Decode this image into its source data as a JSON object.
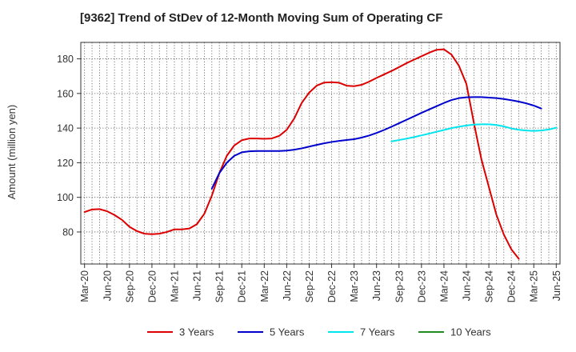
{
  "title": "[9362]  Trend of StDev of 12-Month Moving Sum of Operating CF",
  "chart_data": {
    "type": "line",
    "title": "[9362]  Trend of StDev of 12-Month Moving Sum of Operating CF",
    "ylabel": "Amount (million yen)",
    "xlabel": "",
    "ylim": [
      61.5,
      189.5
    ],
    "yticks": [
      80,
      100,
      120,
      140,
      160,
      180
    ],
    "x_start": "Mar-20",
    "x_count": 64,
    "xticks": [
      "Mar-20",
      "Jun-20",
      "Sep-20",
      "Dec-20",
      "Mar-21",
      "Jun-21",
      "Sep-21",
      "Dec-21",
      "Mar-22",
      "Jun-22",
      "Sep-22",
      "Dec-22",
      "Mar-23",
      "Jun-23",
      "Sep-23",
      "Dec-23",
      "Mar-24",
      "Jun-24",
      "Sep-24",
      "Dec-24",
      "Mar-25",
      "Jun-25"
    ],
    "grid": true,
    "legend_position": "bottom",
    "series": [
      {
        "name": "3 Years",
        "color": "#dd0000",
        "start": "Mar-20",
        "values": [
          91.5,
          93,
          93.2,
          92,
          89.8,
          87,
          83,
          80.5,
          79,
          78.7,
          79,
          80,
          81.5,
          81.5,
          82,
          84.5,
          90.5,
          101,
          114,
          124,
          130,
          133,
          134,
          134,
          133.8,
          134,
          135.5,
          139,
          145.5,
          154.5,
          160.5,
          164.5,
          166.3,
          166.5,
          166.2,
          164.5,
          164.2,
          165,
          166.8,
          169,
          171,
          173,
          175.2,
          177.5,
          179.5,
          181.5,
          183.5,
          185.2,
          185.5,
          182.5,
          176,
          165.5,
          143,
          122,
          106,
          90,
          78.5,
          70,
          64.5
        ]
      },
      {
        "name": "5 Years",
        "color": "#0000cc",
        "start": "Aug-21",
        "values": [
          105,
          114,
          120,
          124,
          126,
          126.6,
          126.8,
          126.8,
          126.8,
          126.8,
          127,
          127.5,
          128.3,
          129.3,
          130.3,
          131.2,
          132,
          132.6,
          133.1,
          133.6,
          134.5,
          135.7,
          137.2,
          138.9,
          140.8,
          142.8,
          144.8,
          146.8,
          148.8,
          150.7,
          152.6,
          154.5,
          156.2,
          157.3,
          157.8,
          157.9,
          157.9,
          157.6,
          157.3,
          156.8,
          156.1,
          155.3,
          154.3,
          153,
          151.3
        ]
      },
      {
        "name": "7 Years",
        "color": "#00e5ee",
        "start": "Aug-23",
        "values": [
          132.3,
          133.1,
          133.9,
          134.8,
          135.8,
          136.8,
          137.9,
          138.9,
          140,
          140.8,
          141.5,
          142,
          142.2,
          142.2,
          141.8,
          141,
          139.8,
          139,
          138.6,
          138.4,
          138.6,
          139.2,
          140.2
        ]
      },
      {
        "name": "10 Years",
        "color": "#228b22",
        "start": "Mar-25",
        "values": []
      }
    ]
  }
}
